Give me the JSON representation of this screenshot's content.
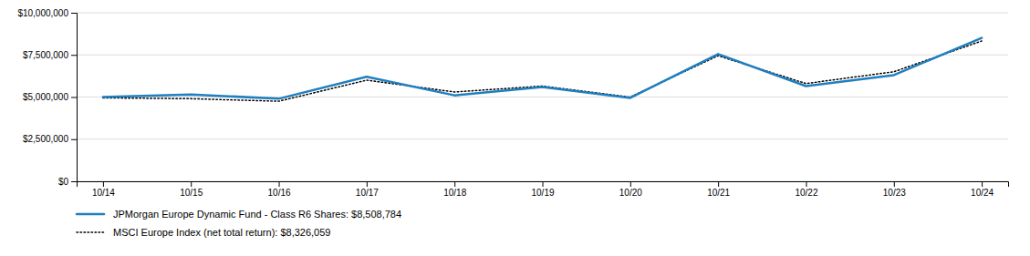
{
  "chart_data": {
    "type": "line",
    "categories": [
      "10/14",
      "10/15",
      "10/16",
      "10/17",
      "10/18",
      "10/19",
      "10/20",
      "10/21",
      "10/22",
      "10/23",
      "10/24"
    ],
    "series": [
      {
        "name": "JPMorgan Europe Dynamic Fund - Class R6 Shares: $8,508,784",
        "color": "#1F7FBF",
        "line_style": "solid",
        "values": [
          5000000,
          5150000,
          4900000,
          6200000,
          5100000,
          5600000,
          4950000,
          7550000,
          5650000,
          6300000,
          8508784
        ]
      },
      {
        "name": "MSCI Europe Index (net total return): $8,326,059",
        "color": "#000000",
        "line_style": "dotted",
        "values": [
          4950000,
          4900000,
          4750000,
          6000000,
          5300000,
          5650000,
          5000000,
          7450000,
          5800000,
          6500000,
          8326059
        ]
      }
    ],
    "ylim": [
      0,
      10000000
    ],
    "yticks": [
      {
        "value": 0,
        "label": "$0"
      },
      {
        "value": 2500000,
        "label": "$2,500,000"
      },
      {
        "value": 5000000,
        "label": "$5,000,000"
      },
      {
        "value": 7500000,
        "label": "$7,500,000"
      },
      {
        "value": 10000000,
        "label": "$10,000,000"
      }
    ],
    "grid": true,
    "legend": "bottom"
  }
}
